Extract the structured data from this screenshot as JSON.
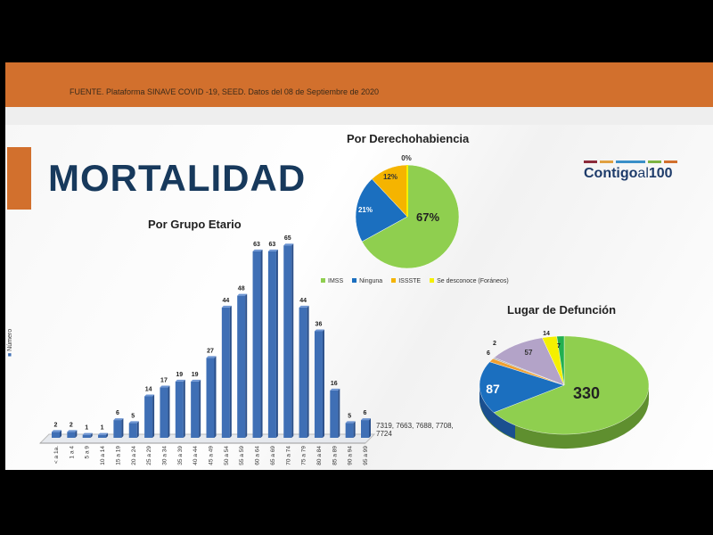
{
  "source": "FUENTE. Plataforma SINAVE COVID -19, SEED. Datos del 08 de Septiembre de 2020",
  "title": "MORTALIDAD",
  "logo": {
    "text1": "Contigo",
    "text2": "al",
    "text3": "100",
    "colors": [
      "#8b2a3a",
      "#e0a040",
      "#3a8fc8",
      "#7cb342",
      "#d2702d"
    ]
  },
  "colors": {
    "orange": "#d2702d",
    "navy": "#17395c",
    "bar": "#3f6fb5"
  },
  "chart_data": [
    {
      "type": "bar",
      "title": "Por Grupo Etario",
      "ylabel": "Número",
      "legend": "Número",
      "categories": [
        "< a 1a.",
        "1 a 4",
        "5 a 9",
        "10 a 14",
        "15 a 19",
        "20 a 24",
        "25 a 29",
        "30 a 34",
        "35 a 39",
        "40 a 44",
        "45 a 49",
        "50 a 54",
        "55 a 59",
        "60 a 64",
        "65 a 69",
        "70 a 74",
        "75 a 79",
        "80 a 84",
        "85 a 89",
        "90 a 94",
        "95 a 99"
      ],
      "values": [
        2,
        2,
        1,
        1,
        6,
        5,
        14,
        17,
        19,
        19,
        27,
        44,
        48,
        63,
        63,
        65,
        44,
        36,
        16,
        5,
        6
      ],
      "annotation": "7319, 7663, 7688, 7708, 7724"
    },
    {
      "type": "pie",
      "title": "Por Derechohabiencia",
      "labels": [
        "IMSS",
        "Ninguna",
        "ISSSTE",
        "Se desconoce (Foráneos)"
      ],
      "values": [
        67,
        21,
        12,
        0
      ],
      "display": [
        "67%",
        "21%",
        "12%",
        "0%"
      ],
      "colors": [
        "#8fcf4f",
        "#1b6fbf",
        "#f5b400",
        "#f5f000"
      ]
    },
    {
      "type": "pie",
      "title": "Lugar de Defunción",
      "values": [
        330,
        87,
        6,
        2,
        57,
        14,
        7
      ],
      "colors": [
        "#8fcf4f",
        "#1b6fbf",
        "#f0a030",
        "#aaaaaa",
        "#b3a3c8",
        "#f5f000",
        "#22b050"
      ]
    }
  ]
}
